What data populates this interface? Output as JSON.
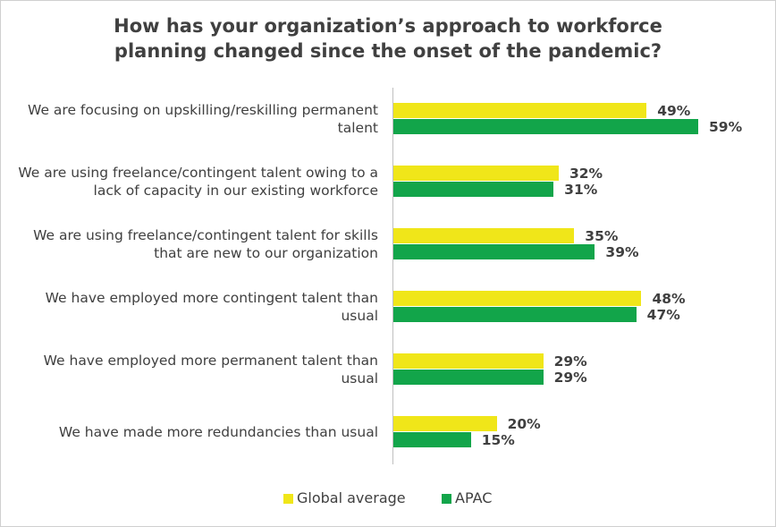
{
  "chart_data": {
    "type": "bar",
    "orientation": "horizontal",
    "title": "How has your organization’s approach to workforce planning changed since the onset of the pandemic?",
    "categories": [
      "We are focusing on upskilling/reskilling permanent talent",
      "We are using freelance/contingent talent owing to a lack of capacity in our existing workforce",
      "We are using freelance/contingent talent for skills that are new to our organization",
      "We have employed more contingent talent than usual",
      "We have employed more permanent talent than usual",
      "We have made more redundancies than usual"
    ],
    "series": [
      {
        "name": "Global average",
        "color": "#f0e619",
        "values": [
          49,
          32,
          35,
          48,
          29,
          20
        ],
        "value_labels": [
          "49%",
          "32%",
          "35%",
          "48%",
          "29%",
          "20%"
        ]
      },
      {
        "name": "APAC",
        "color": "#12a54a",
        "values": [
          59,
          31,
          39,
          47,
          29,
          15
        ],
        "value_labels": [
          "59%",
          "31%",
          "39%",
          "47%",
          "29%",
          "15%"
        ]
      }
    ],
    "legend": "bottom"
  }
}
